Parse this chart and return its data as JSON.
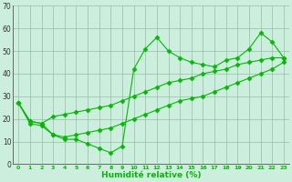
{
  "x": [
    0,
    1,
    2,
    3,
    4,
    5,
    6,
    7,
    8,
    9,
    10,
    11,
    12,
    13,
    14,
    15,
    16,
    17,
    18,
    19,
    20,
    21,
    22,
    23
  ],
  "y_main": [
    27,
    19,
    18,
    13,
    11,
    11,
    9,
    7,
    5,
    8,
    42,
    51,
    56,
    50,
    47,
    45,
    44,
    43,
    46,
    47,
    51,
    58,
    54,
    47
  ],
  "y_upper": [
    27,
    19,
    18,
    21,
    22,
    23,
    24,
    25,
    26,
    28,
    30,
    32,
    34,
    36,
    37,
    38,
    40,
    41,
    42,
    44,
    45,
    46,
    47,
    47
  ],
  "y_lower": [
    27,
    18,
    17,
    13,
    12,
    13,
    14,
    15,
    16,
    18,
    20,
    22,
    24,
    26,
    28,
    29,
    30,
    32,
    34,
    36,
    38,
    40,
    42,
    45
  ],
  "line_color": "#00bb00",
  "bg_color": "#cceedd",
  "grid_color": "#99bbaa",
  "xlabel": "Humidité relative (%)",
  "xlim": [
    -0.5,
    23.5
  ],
  "ylim": [
    0,
    70
  ],
  "yticks": [
    0,
    10,
    20,
    30,
    40,
    50,
    60,
    70
  ],
  "xtick_labels": [
    "0",
    "1",
    "2",
    "3",
    "4",
    "5",
    "6",
    "7",
    "8",
    "9",
    "10",
    "11",
    "12",
    "13",
    "14",
    "15",
    "16",
    "17",
    "18",
    "19",
    "20",
    "21",
    "22",
    "23"
  ]
}
